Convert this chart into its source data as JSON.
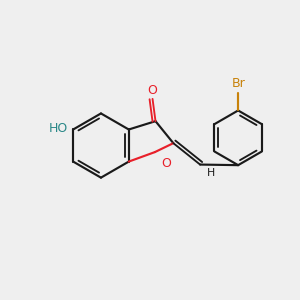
{
  "background_color": "#efefef",
  "bond_color": "#1a1a1a",
  "oxygen_color": "#e8202a",
  "bromine_color": "#c8820a",
  "teal_color": "#2a8888",
  "figsize": [
    3.0,
    3.0
  ],
  "dpi": 100,
  "xlim": [
    0,
    10
  ],
  "ylim": [
    0,
    10
  ]
}
